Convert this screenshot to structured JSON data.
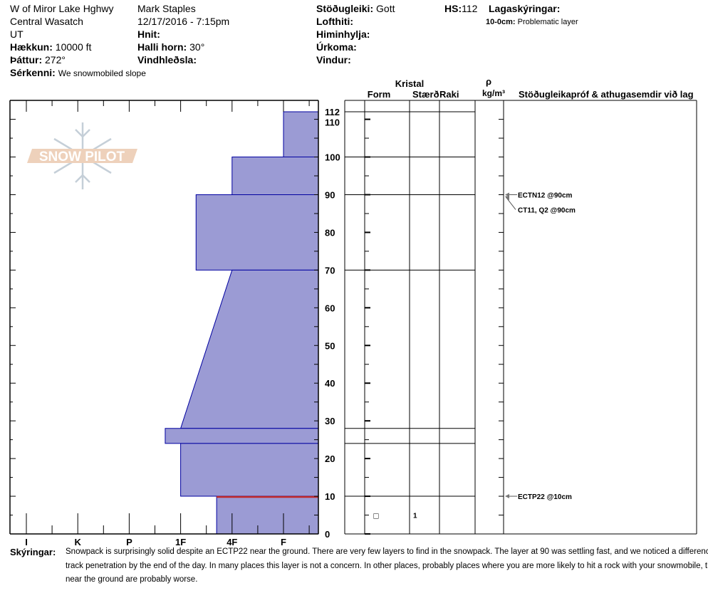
{
  "header": {
    "location": "W of Miror Lake Hghwy",
    "range": "Central Wasatch",
    "state": "UT",
    "elevation_label": "Hækkun:",
    "elevation": "10000 ft",
    "aspect_label": "Þáttur:",
    "aspect": "272°",
    "feature_label": "Sérkenni:",
    "feature": "We snowmobiled slope",
    "observer": "Mark Staples",
    "datetime": "12/17/2016 - 7:15pm",
    "coords_label": "Hnit:",
    "slope_label": "Halli horn:",
    "slope": "30°",
    "wind_loading_label": "Vindhleðsla:",
    "stability_label": "Stöðugleiki:",
    "stability": "Gott",
    "air_temp_label": "Lofthiti:",
    "sky_label": "Himinhylja:",
    "precip_label": "Úrkoma:",
    "wind_label": "Vindur:",
    "hs_label": "HS:",
    "hs": "112",
    "layer_notes_label": "Lagaskýringar:",
    "layer_note_range": "10-0cm:",
    "layer_note_text": "Problematic layer"
  },
  "table_header": {
    "crystal": "Kristal",
    "form": "Form",
    "size": "Stærð",
    "moisture": "Raki",
    "rho": "ρ",
    "density_unit": "kg/m³",
    "stability_col": "Stöðugleikapróf & athugasemdir við lag"
  },
  "logo": {
    "text": "SNOW PILOT"
  },
  "colors": {
    "layer_fill": "#9b9bd4",
    "layer_stroke": "#0000a0",
    "problem": "#c0282a"
  },
  "chart_data": {
    "type": "snow-profile",
    "ylim": [
      0,
      112
    ],
    "y_ticks": [
      0,
      10,
      20,
      30,
      40,
      50,
      60,
      70,
      80,
      90,
      100,
      110,
      112
    ],
    "hardness_scale": [
      "I",
      "K",
      "P",
      "1F",
      "4F",
      "F"
    ],
    "layers": [
      {
        "top": 112,
        "bottom": 100,
        "hardness_top": 6.0,
        "hardness_bottom": 6.0
      },
      {
        "top": 100,
        "bottom": 90,
        "hardness_top": 5.0,
        "hardness_bottom": 5.0
      },
      {
        "top": 90,
        "bottom": 70,
        "hardness_top": 4.3,
        "hardness_bottom": 4.3
      },
      {
        "top": 70,
        "bottom": 28,
        "hardness_top": 5.0,
        "hardness_bottom": 4.0
      },
      {
        "top": 28,
        "bottom": 24,
        "hardness_top": 3.7,
        "hardness_bottom": 3.7
      },
      {
        "top": 24,
        "bottom": 10,
        "hardness_top": 4.0,
        "hardness_bottom": 4.0
      },
      {
        "top": 10,
        "bottom": 0,
        "hardness_top": 4.7,
        "hardness_bottom": 4.7,
        "problematic": true
      }
    ],
    "crystal_rows": [
      {
        "depth": 5,
        "form_symbol": "□",
        "size": "1"
      }
    ],
    "tests": [
      {
        "label": "ECTN12 @90cm",
        "depth": 90
      },
      {
        "label": "CT11, Q2 @90cm",
        "depth": 90
      },
      {
        "label": "ECTP22 @10cm",
        "depth": 10
      }
    ]
  },
  "notes": {
    "label": "Skýringar:",
    "text": "Snowpack is surprisingly solid despite an ECTP22 near the ground. There are very few layers to find in the snowpack. The layer at 90 was settling fast, and we noticed a difference in our track penetration by the end of the day. In many places this layer is not a concern. In other places, probably places where you are more likely to hit a rock with your snowmobile, the facets near the ground are probably worse."
  }
}
